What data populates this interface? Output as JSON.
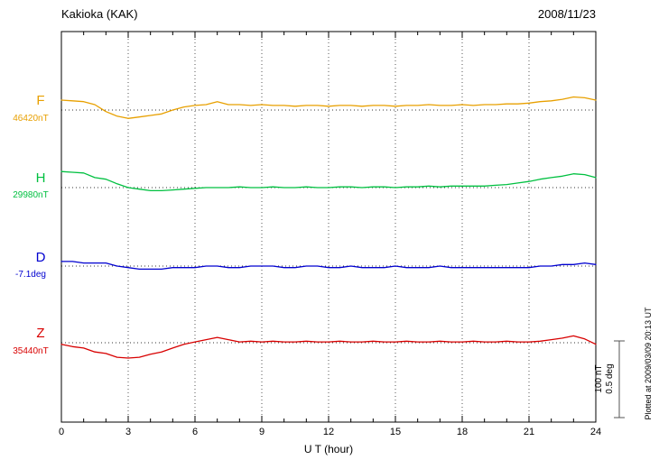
{
  "header": {
    "station": "Kakioka (KAK)",
    "date": "2008/11/23"
  },
  "x_axis": {
    "title": "U T (hour)",
    "ticks": [
      "0",
      "3",
      "6",
      "9",
      "12",
      "15",
      "18",
      "21",
      "24"
    ]
  },
  "traces": [
    {
      "name": "F",
      "label": "F",
      "baseline_label": "46420nT",
      "color": "#e8a000"
    },
    {
      "name": "H",
      "label": "H",
      "baseline_label": "29980nT",
      "color": "#00c040"
    },
    {
      "name": "D",
      "label": "D",
      "baseline_label": "-7.1deg",
      "color": "#0000d0"
    },
    {
      "name": "Z",
      "label": "Z",
      "baseline_label": "35440nT",
      "color": "#d80000"
    }
  ],
  "scale_bar": {
    "line1": "100 nT",
    "line2": "0.5 deg"
  },
  "footnote": "Plotted at 2009/03/09 20:13 UT",
  "chart_data": {
    "type": "line",
    "title": "Kakioka (KAK) magnetogram 2008/11/23",
    "xlabel": "U T (hour)",
    "x_range": [
      0,
      24
    ],
    "x_ticks": [
      0,
      3,
      6,
      9,
      12,
      15,
      18,
      21,
      24
    ],
    "grid": "dotted vertical lines every 3 h; dotted horizontal baseline per trace",
    "scale": {
      "nT_per_div": 100,
      "deg_per_div": 0.5
    },
    "x": [
      0,
      0.5,
      1,
      1.5,
      2,
      2.5,
      3,
      3.5,
      4,
      4.5,
      5,
      5.5,
      6,
      6.5,
      7,
      7.5,
      8,
      8.5,
      9,
      9.5,
      10,
      10.5,
      11,
      11.5,
      12,
      12.5,
      13,
      13.5,
      14,
      14.5,
      15,
      15.5,
      16,
      16.5,
      17,
      17.5,
      18,
      18.5,
      19,
      19.5,
      20,
      20.5,
      21,
      21.5,
      22,
      22.5,
      23,
      23.5,
      24
    ],
    "series": [
      {
        "name": "F",
        "unit": "nT",
        "baseline": 46420,
        "color": "#e8a000",
        "values": [
          46433,
          46432,
          46431,
          46427,
          46418,
          46412,
          46409,
          46411,
          46413,
          46415,
          46420,
          46424,
          46426,
          46427,
          46431,
          46427,
          46427,
          46426,
          46427,
          46426,
          46426,
          46425,
          46426,
          46426,
          46425,
          46426,
          46426,
          46425,
          46426,
          46426,
          46425,
          46426,
          46426,
          46427,
          46426,
          46426,
          46427,
          46426,
          46427,
          46427,
          46428,
          46428,
          46429,
          46431,
          46432,
          46434,
          46437,
          46436,
          46433
        ]
      },
      {
        "name": "H",
        "unit": "nT",
        "baseline": 29980,
        "color": "#00c040",
        "values": [
          30001,
          30000,
          29999,
          29993,
          29991,
          29985,
          29980,
          29978,
          29976,
          29976,
          29977,
          29978,
          29979,
          29980,
          29980,
          29980,
          29981,
          29980,
          29980,
          29981,
          29980,
          29980,
          29981,
          29980,
          29980,
          29981,
          29981,
          29980,
          29981,
          29981,
          29980,
          29981,
          29981,
          29982,
          29981,
          29982,
          29982,
          29982,
          29982,
          29983,
          29984,
          29986,
          29988,
          29991,
          29993,
          29995,
          29998,
          29997,
          29993
        ]
      },
      {
        "name": "D",
        "unit": "deg",
        "baseline": -7.1,
        "color": "#0000d0",
        "values": [
          -7.07,
          -7.07,
          -7.08,
          -7.08,
          -7.08,
          -7.1,
          -7.11,
          -7.12,
          -7.12,
          -7.12,
          -7.11,
          -7.11,
          -7.11,
          -7.1,
          -7.1,
          -7.11,
          -7.11,
          -7.1,
          -7.1,
          -7.1,
          -7.11,
          -7.11,
          -7.1,
          -7.1,
          -7.11,
          -7.11,
          -7.1,
          -7.11,
          -7.11,
          -7.11,
          -7.1,
          -7.11,
          -7.11,
          -7.11,
          -7.1,
          -7.11,
          -7.11,
          -7.11,
          -7.11,
          -7.11,
          -7.11,
          -7.11,
          -7.11,
          -7.1,
          -7.1,
          -7.09,
          -7.09,
          -7.08,
          -7.09
        ]
      },
      {
        "name": "Z",
        "unit": "nT",
        "baseline": 35440,
        "color": "#d80000",
        "values": [
          35438,
          35435,
          35433,
          35428,
          35426,
          35421,
          35420,
          35421,
          35425,
          35428,
          35433,
          35438,
          35441,
          35444,
          35447,
          35444,
          35441,
          35442,
          35441,
          35442,
          35441,
          35441,
          35442,
          35441,
          35441,
          35442,
          35441,
          35441,
          35442,
          35441,
          35441,
          35442,
          35441,
          35441,
          35442,
          35441,
          35441,
          35442,
          35441,
          35441,
          35442,
          35441,
          35441,
          35442,
          35444,
          35446,
          35449,
          35445,
          35438
        ]
      }
    ]
  }
}
